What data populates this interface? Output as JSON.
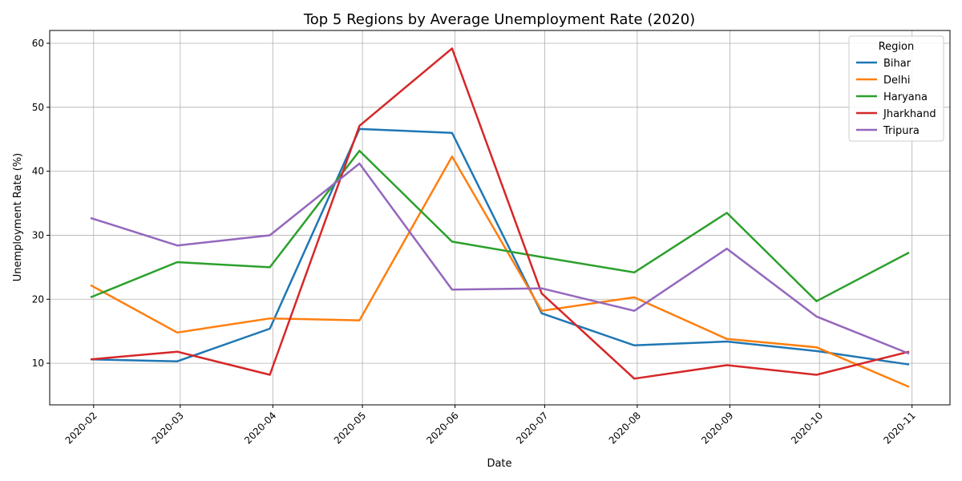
{
  "chart_data": {
    "type": "line",
    "title": "Top 5 Regions by Average Unemployment Rate (2020)",
    "xlabel": "Date",
    "ylabel": "Unemployment Rate (%)",
    "x": [
      "2020-01-31",
      "2020-02-29",
      "2020-03-31",
      "2020-04-30",
      "2020-05-31",
      "2020-06-30",
      "2020-07-31",
      "2020-08-31",
      "2020-09-30",
      "2020-10-31"
    ],
    "x_ticks": [
      "2020-02",
      "2020-03",
      "2020-04",
      "2020-05",
      "2020-06",
      "2020-07",
      "2020-08",
      "2020-09",
      "2020-10",
      "2020-11"
    ],
    "y_ticks": [
      10,
      20,
      30,
      40,
      50,
      60
    ],
    "ylim": [
      3.5,
      62
    ],
    "grid": true,
    "legend": {
      "title": "Region",
      "placement": "top-right"
    },
    "series": [
      {
        "name": "Bihar",
        "color": "#1f77b4",
        "values": [
          10.6,
          10.3,
          15.4,
          46.6,
          46.0,
          17.8,
          12.8,
          13.4,
          11.9,
          9.8
        ]
      },
      {
        "name": "Delhi",
        "color": "#ff7f0e",
        "values": [
          22.2,
          14.8,
          17.0,
          16.7,
          42.3,
          18.2,
          20.3,
          13.8,
          12.5,
          6.3
        ]
      },
      {
        "name": "Haryana",
        "color": "#2ca02c",
        "values": [
          20.3,
          25.8,
          25.0,
          43.2,
          29.0,
          26.6,
          24.2,
          33.5,
          19.7,
          27.3
        ]
      },
      {
        "name": "Jharkhand",
        "color": "#d62728",
        "values": [
          10.6,
          11.8,
          8.2,
          47.1,
          59.2,
          20.9,
          7.6,
          9.7,
          8.2,
          11.8
        ]
      },
      {
        "name": "Tripura",
        "color": "#9467bd",
        "values": [
          32.7,
          28.4,
          30.0,
          41.2,
          21.5,
          21.7,
          18.2,
          27.9,
          17.3,
          11.5
        ]
      }
    ]
  }
}
